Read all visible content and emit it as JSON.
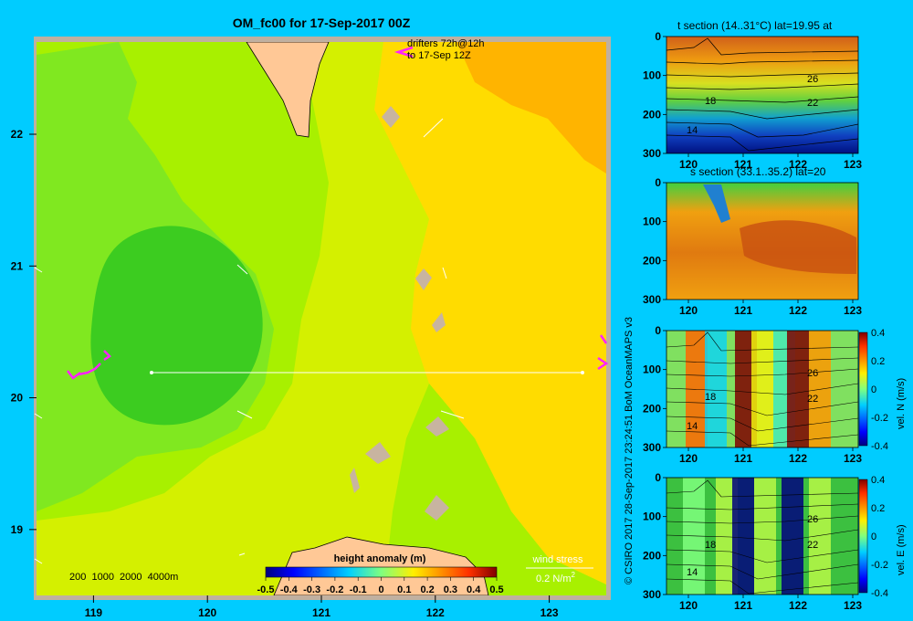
{
  "colors": {
    "background": "#00ccff",
    "frame": "#c0b0a0",
    "land": "#ffc896",
    "wind_arrow": "#ffffff",
    "drifter": "#ff22ff"
  },
  "chart_data": [
    {
      "type": "heatmap",
      "title": "OM_fc00 for 17-Sep-2017 00Z",
      "variable": "height anomaly (m)",
      "xlim": [
        118.5,
        123.5
      ],
      "ylim": [
        18.5,
        22.7
      ],
      "xticks": [
        119,
        120,
        121,
        122,
        123
      ],
      "xtick_labels": [
        "119",
        "120",
        "121",
        "122",
        "123"
      ],
      "yticks": [
        19,
        20,
        21,
        22
      ],
      "ytick_labels": [
        "19",
        "20",
        "21",
        "22"
      ],
      "colorbar": {
        "label": "height anomaly (m)",
        "range": [
          -0.5,
          0.5
        ],
        "tick_labels": [
          "-0.5",
          "-0.4",
          "-0.3",
          "-0.2",
          "-0.1",
          "0",
          "0.1",
          "0.2",
          "0.3",
          "0.4",
          "0.5"
        ]
      },
      "depth_legend": "200  1000  2000  4000m",
      "drifter_note": [
        "drifters 72h@12h",
        "to 17-Sep 12Z"
      ],
      "wind_legend": {
        "title": "wind stress",
        "scale_label": "0.2 N/m",
        "superscript": "2"
      },
      "section_line": {
        "lat": 20,
        "lon_start": 119.5,
        "lon_end": 123.3
      },
      "fields": [
        {
          "name": "low_anomaly_eddy",
          "lon": 119.4,
          "lat": 20.5,
          "value": 0.03
        },
        {
          "name": "southwest_shelf",
          "lon": 118.7,
          "lat": 19.0,
          "value": 0.06
        },
        {
          "name": "central_band",
          "lon": 121.2,
          "lat": 20.2,
          "value": 0.1
        },
        {
          "name": "eastern_high",
          "lon": 122.7,
          "lat": 22.4,
          "value": 0.2
        },
        {
          "name": "east_coast",
          "lon": 123.3,
          "lat": 20.0,
          "value": 0.18
        }
      ]
    },
    {
      "type": "heatmap",
      "title": "t section (14..31°C) lat=19.95 at",
      "xlim": [
        119.6,
        123.1
      ],
      "ylim": [
        0,
        300
      ],
      "xtick_labels": [
        "120",
        "121",
        "122",
        "123"
      ],
      "ytick_labels": [
        "0",
        "100",
        "200",
        "300"
      ],
      "contour_labels": [
        "26",
        "22",
        "18",
        "14"
      ],
      "value_range": [
        14,
        31
      ]
    },
    {
      "type": "heatmap",
      "title": "s section (33.1..35.2) lat=20",
      "xlim": [
        119.6,
        123.1
      ],
      "ylim": [
        0,
        300
      ],
      "xtick_labels": [
        "120",
        "121",
        "122",
        "123"
      ],
      "ytick_labels": [
        "0",
        "100",
        "200",
        "300"
      ],
      "value_range": [
        33.1,
        35.2
      ]
    },
    {
      "type": "heatmap",
      "title": "",
      "xlim": [
        119.6,
        123.1
      ],
      "ylim": [
        0,
        300
      ],
      "xtick_labels": [
        "120",
        "121",
        "122",
        "123"
      ],
      "ytick_labels": [
        "0",
        "100",
        "200",
        "300"
      ],
      "contour_labels": [
        "26",
        "22",
        "18",
        "14"
      ],
      "colorbar": {
        "label": "vel. N (m/s)",
        "tick_labels": [
          "0.4",
          "0.2",
          "0",
          "-0.2",
          "-0.4"
        ],
        "range": [
          -0.4,
          0.4
        ]
      },
      "velocity_bands": [
        {
          "lon": 120.15,
          "value": 0.25
        },
        {
          "lon": 120.5,
          "value": -0.1
        },
        {
          "lon": 121.05,
          "value": 0.4
        },
        {
          "lon": 121.35,
          "value": 0.1
        },
        {
          "lon": 121.75,
          "value": -0.05
        },
        {
          "lon": 122.0,
          "value": 0.4
        },
        {
          "lon": 122.4,
          "value": 0.2
        }
      ]
    },
    {
      "type": "heatmap",
      "title": "",
      "xlim": [
        119.6,
        123.1
      ],
      "ylim": [
        0,
        300
      ],
      "xtick_labels": [
        "120",
        "121",
        "122",
        "123"
      ],
      "ytick_labels": [
        "0",
        "100",
        "200",
        "300"
      ],
      "contour_labels": [
        "26",
        "18",
        "22",
        "14"
      ],
      "colorbar": {
        "label": "vel. E (m/s)",
        "tick_labels": [
          "0.4",
          "0.2",
          "0",
          "-0.2",
          "-0.4"
        ],
        "range": [
          -0.4,
          0.4
        ]
      },
      "velocity_bands": [
        {
          "lon": 120.1,
          "value": 0.0
        },
        {
          "lon": 120.7,
          "value": 0.05
        },
        {
          "lon": 121.0,
          "value": -0.4
        },
        {
          "lon": 121.4,
          "value": 0.05
        },
        {
          "lon": 121.9,
          "value": -0.4
        },
        {
          "lon": 122.4,
          "value": 0.05
        }
      ]
    }
  ],
  "credit": "© CSIRO 2017   28-Sep-2017 23:24:51 BoM OceanMAPS v3"
}
